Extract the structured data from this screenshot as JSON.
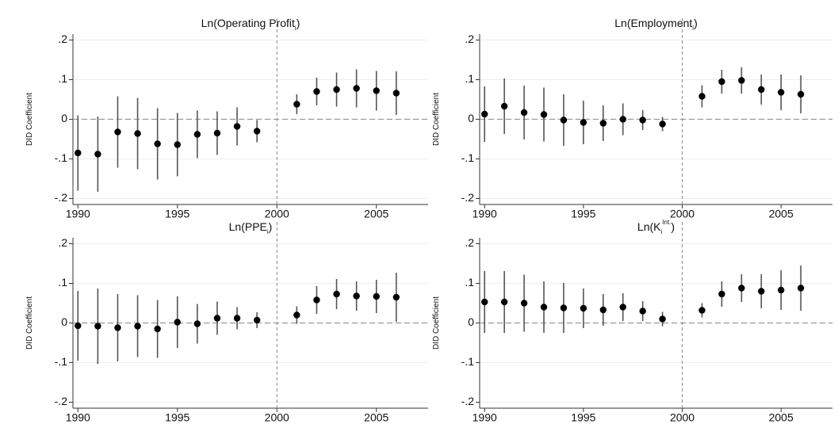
{
  "chart_data": [
    {
      "type": "errorbar",
      "title": {
        "text": "Ln(Operating Profit",
        "sub": "i",
        "end": ")"
      },
      "ylabel": "DID Coefficient",
      "x": [
        1990,
        1991,
        1992,
        1993,
        1994,
        1995,
        1996,
        1997,
        1998,
        1999,
        2001,
        2002,
        2003,
        2004,
        2005,
        2006
      ],
      "values": [
        -0.085,
        -0.088,
        -0.032,
        -0.036,
        -0.062,
        -0.064,
        -0.038,
        -0.035,
        -0.018,
        -0.03,
        0.038,
        0.07,
        0.075,
        0.078,
        0.072,
        0.066
      ],
      "errors": [
        0.095,
        0.095,
        0.09,
        0.09,
        0.09,
        0.08,
        0.06,
        0.055,
        0.048,
        0.028,
        0.025,
        0.035,
        0.043,
        0.048,
        0.05,
        0.055
      ],
      "xlim": [
        1989.75,
        2007.6
      ],
      "ylim": [
        -0.215,
        0.215
      ],
      "xticks": [
        1990,
        1995,
        2000,
        2005
      ],
      "yticks": [
        {
          "value": -0.2,
          "label": "-.2"
        },
        {
          "value": -0.1,
          "label": "-.1"
        },
        0,
        {
          "value": 0.1,
          "label": ".1"
        },
        {
          "value": 0.2,
          "label": ".2"
        }
      ],
      "vline": 2000,
      "hline": 0,
      "grid": true,
      "color": "#000000",
      "error_color": "#555555"
    },
    {
      "type": "errorbar",
      "title": {
        "text": "Ln(Employment",
        "sub": "i",
        "end": ")"
      },
      "ylabel": "DID Coefficient",
      "x": [
        1990,
        1991,
        1992,
        1993,
        1994,
        1995,
        1996,
        1997,
        1998,
        1999,
        2001,
        2002,
        2003,
        2004,
        2005,
        2006
      ],
      "values": [
        0.013,
        0.033,
        0.017,
        0.012,
        -0.002,
        -0.008,
        -0.01,
        0.0,
        -0.002,
        -0.012,
        0.058,
        0.095,
        0.098,
        0.075,
        0.068,
        0.063
      ],
      "errors": [
        0.07,
        0.07,
        0.068,
        0.068,
        0.065,
        0.055,
        0.045,
        0.04,
        0.025,
        0.018,
        0.028,
        0.03,
        0.033,
        0.038,
        0.045,
        0.048
      ],
      "xlim": [
        1989.75,
        2007.6
      ],
      "ylim": [
        -0.215,
        0.215
      ],
      "xticks": [
        1990,
        1995,
        2000,
        2005
      ],
      "yticks": [
        {
          "value": -0.2,
          "label": "-.2"
        },
        {
          "value": -0.1,
          "label": "-.1"
        },
        0,
        {
          "value": 0.1,
          "label": ".1"
        },
        {
          "value": 0.2,
          "label": ".2"
        }
      ],
      "vline": 2000,
      "hline": 0,
      "grid": true,
      "color": "#000000",
      "error_color": "#555555"
    },
    {
      "type": "errorbar",
      "title": {
        "text": "Ln(PPE",
        "sub": "i",
        "end": ")"
      },
      "ylabel": "DID Coefficient",
      "x": [
        1990,
        1991,
        1992,
        1993,
        1994,
        1995,
        1996,
        1997,
        1998,
        1999,
        2001,
        2002,
        2003,
        2004,
        2005,
        2006
      ],
      "values": [
        -0.007,
        -0.008,
        -0.012,
        -0.008,
        -0.015,
        0.002,
        -0.002,
        0.012,
        0.012,
        0.007,
        0.02,
        0.058,
        0.073,
        0.068,
        0.067,
        0.065
      ],
      "errors": [
        0.088,
        0.095,
        0.085,
        0.078,
        0.073,
        0.065,
        0.05,
        0.042,
        0.028,
        0.02,
        0.022,
        0.035,
        0.038,
        0.037,
        0.042,
        0.062
      ],
      "xlim": [
        1989.75,
        2007.6
      ],
      "ylim": [
        -0.215,
        0.215
      ],
      "xticks": [
        1990,
        1995,
        2000,
        2005
      ],
      "yticks": [
        {
          "value": -0.2,
          "label": "-.2"
        },
        {
          "value": -0.1,
          "label": "-.1"
        },
        0,
        {
          "value": 0.1,
          "label": ".1"
        },
        {
          "value": 0.2,
          "label": ".2"
        }
      ],
      "vline": 2000,
      "hline": 0,
      "grid": true,
      "color": "#000000",
      "error_color": "#555555"
    },
    {
      "type": "errorbar",
      "title": {
        "text": "Ln(K",
        "sub": "i",
        "sup": "Int.",
        "end": ")"
      },
      "ylabel": "DID Coefficient",
      "x": [
        1990,
        1991,
        1992,
        1993,
        1994,
        1995,
        1996,
        1997,
        1998,
        1999,
        2001,
        2002,
        2003,
        2004,
        2005,
        2006
      ],
      "values": [
        0.053,
        0.053,
        0.05,
        0.04,
        0.038,
        0.037,
        0.033,
        0.04,
        0.03,
        0.01,
        0.032,
        0.073,
        0.088,
        0.08,
        0.083,
        0.088
      ],
      "errors": [
        0.078,
        0.078,
        0.072,
        0.065,
        0.063,
        0.05,
        0.04,
        0.035,
        0.025,
        0.018,
        0.018,
        0.032,
        0.035,
        0.043,
        0.05,
        0.057
      ],
      "xlim": [
        1989.75,
        2007.6
      ],
      "ylim": [
        -0.215,
        0.215
      ],
      "xticks": [
        1990,
        1995,
        2000,
        2005
      ],
      "yticks": [
        {
          "value": -0.2,
          "label": "-.2"
        },
        {
          "value": -0.1,
          "label": "-.1"
        },
        0,
        {
          "value": 0.1,
          "label": ".1"
        },
        {
          "value": 0.2,
          "label": ".2"
        }
      ],
      "vline": 2000,
      "hline": 0,
      "grid": true,
      "color": "#000000",
      "error_color": "#555555"
    }
  ]
}
